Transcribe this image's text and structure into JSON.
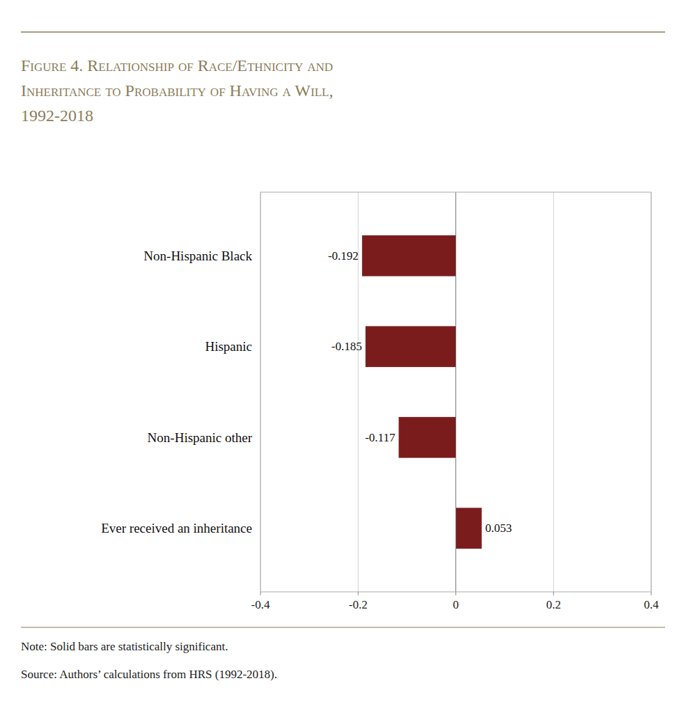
{
  "chart_data": {
    "type": "bar",
    "orientation": "horizontal",
    "title": "Figure 4. Relationship of Race/Ethnicity and\nInheritance to Probability of Having a Will,\n1992-2018",
    "categories": [
      "Ever received an inheritance",
      "Non-Hispanic other",
      "Hispanic",
      "Non-Hispanic Black"
    ],
    "values": [
      0.053,
      -0.117,
      -0.185,
      -0.192
    ],
    "color": "#7B1C1C",
    "xlim": [
      -0.4,
      0.4
    ],
    "xticks": [
      -0.4,
      -0.2,
      0,
      0.2,
      0.4
    ],
    "grid": true,
    "data_labels": true,
    "annotations": [
      "Note: Solid bars are statistically significant.",
      "Source: Authors’ calculations from HRS (1992-2018)."
    ]
  }
}
